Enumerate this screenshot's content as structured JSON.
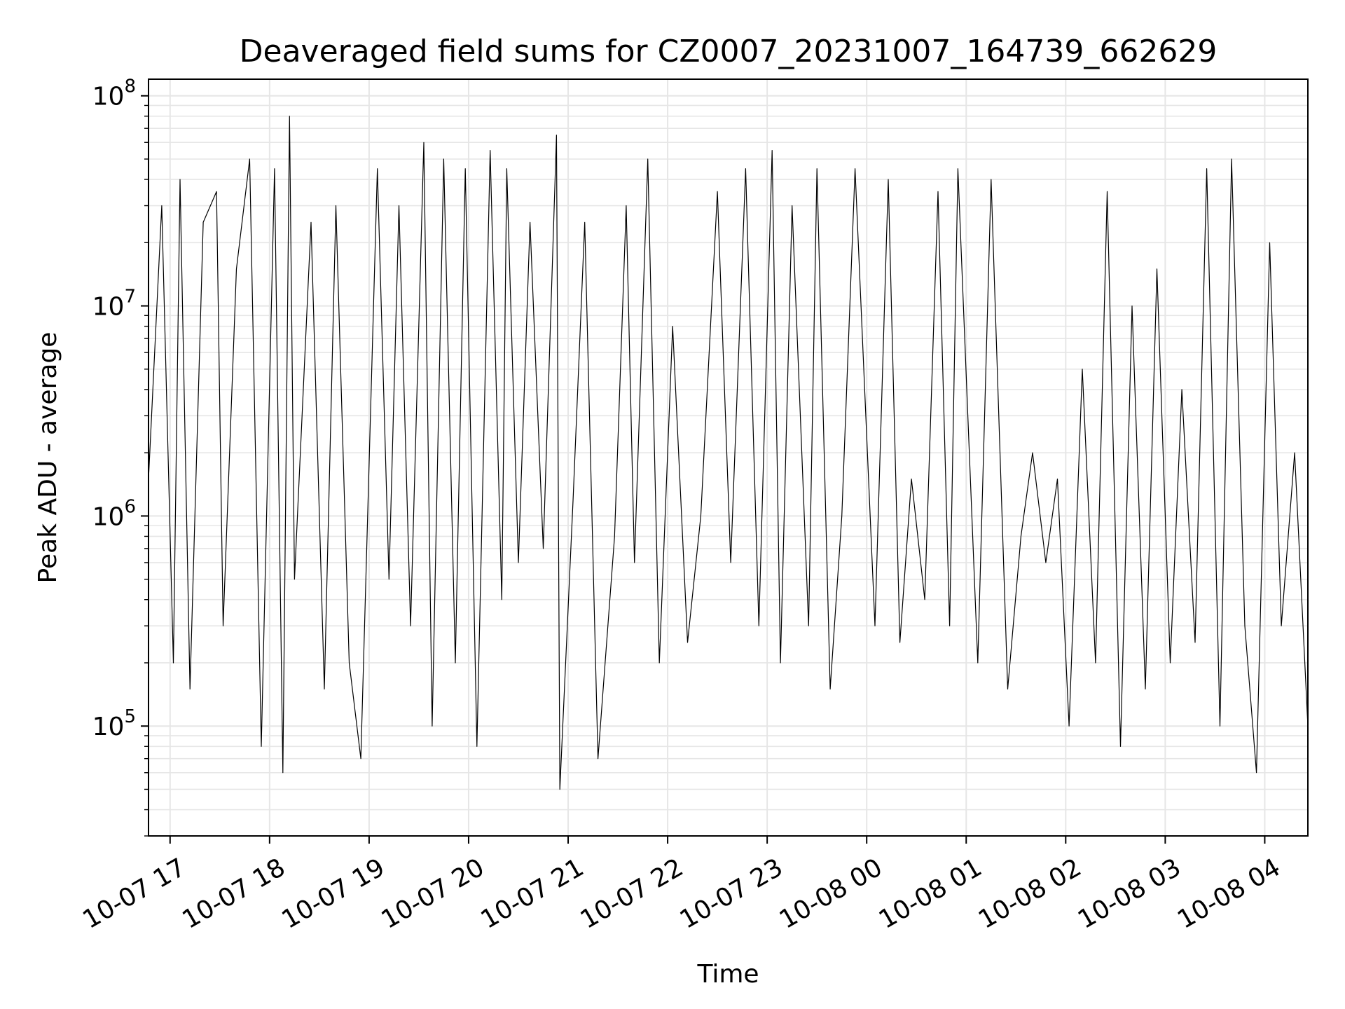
{
  "chart_data": {
    "type": "line",
    "title": "Deaveraged field sums for CZ0007_20231007_164739_662629",
    "xlabel": "Time",
    "ylabel": "Peak ADU - average",
    "yscale": "log",
    "ylim": [
      30000,
      120000000
    ],
    "xlim": [
      "2023-10-07 16:47",
      "2023-10-08 04:26"
    ],
    "x_ticks": [
      {
        "value": "2023-10-07 17:00",
        "label": "10-07 17"
      },
      {
        "value": "2023-10-07 18:00",
        "label": "10-07 18"
      },
      {
        "value": "2023-10-07 19:00",
        "label": "10-07 19"
      },
      {
        "value": "2023-10-07 20:00",
        "label": "10-07 20"
      },
      {
        "value": "2023-10-07 21:00",
        "label": "10-07 21"
      },
      {
        "value": "2023-10-07 22:00",
        "label": "10-07 22"
      },
      {
        "value": "2023-10-07 23:00",
        "label": "10-07 23"
      },
      {
        "value": "2023-10-08 00:00",
        "label": "10-08 00"
      },
      {
        "value": "2023-10-08 01:00",
        "label": "10-08 01"
      },
      {
        "value": "2023-10-08 02:00",
        "label": "10-08 02"
      },
      {
        "value": "2023-10-08 03:00",
        "label": "10-08 03"
      },
      {
        "value": "2023-10-08 04:00",
        "label": "10-08 04"
      }
    ],
    "y_ticks": [
      {
        "value": 100000,
        "base": "10",
        "exp": "5"
      },
      {
        "value": 1000000,
        "base": "10",
        "exp": "6"
      },
      {
        "value": 10000000,
        "base": "10",
        "exp": "7"
      },
      {
        "value": 100000000,
        "base": "10",
        "exp": "8"
      }
    ],
    "grid": true,
    "line_color": "#000000",
    "grid_color": "#e6e6e6",
    "series": [
      {
        "x": [
          "2023-10-07 16:47",
          "2023-10-07 16:55",
          "2023-10-07 17:02",
          "2023-10-07 17:06",
          "2023-10-07 17:12",
          "2023-10-07 17:20",
          "2023-10-07 17:28",
          "2023-10-07 17:32",
          "2023-10-07 17:40",
          "2023-10-07 17:48",
          "2023-10-07 17:55",
          "2023-10-07 18:03",
          "2023-10-07 18:08",
          "2023-10-07 18:12",
          "2023-10-07 18:15",
          "2023-10-07 18:25",
          "2023-10-07 18:33",
          "2023-10-07 18:40",
          "2023-10-07 18:48",
          "2023-10-07 18:55",
          "2023-10-07 19:05",
          "2023-10-07 19:12",
          "2023-10-07 19:18",
          "2023-10-07 19:25",
          "2023-10-07 19:33",
          "2023-10-07 19:38",
          "2023-10-07 19:45",
          "2023-10-07 19:52",
          "2023-10-07 19:58",
          "2023-10-07 20:05",
          "2023-10-07 20:13",
          "2023-10-07 20:20",
          "2023-10-07 20:23",
          "2023-10-07 20:30",
          "2023-10-07 20:37",
          "2023-10-07 20:45",
          "2023-10-07 20:53",
          "2023-10-07 20:55",
          "2023-10-07 21:03",
          "2023-10-07 21:10",
          "2023-10-07 21:18",
          "2023-10-07 21:28",
          "2023-10-07 21:35",
          "2023-10-07 21:40",
          "2023-10-07 21:48",
          "2023-10-07 21:55",
          "2023-10-07 22:03",
          "2023-10-07 22:12",
          "2023-10-07 22:20",
          "2023-10-07 22:30",
          "2023-10-07 22:38",
          "2023-10-07 22:47",
          "2023-10-07 22:55",
          "2023-10-07 23:03",
          "2023-10-07 23:08",
          "2023-10-07 23:15",
          "2023-10-07 23:25",
          "2023-10-07 23:30",
          "2023-10-07 23:38",
          "2023-10-07 23:45",
          "2023-10-07 23:53",
          "2023-10-08 00:05",
          "2023-10-08 00:13",
          "2023-10-08 00:20",
          "2023-10-08 00:27",
          "2023-10-08 00:35",
          "2023-10-08 00:43",
          "2023-10-08 00:50",
          "2023-10-08 00:55",
          "2023-10-08 01:07",
          "2023-10-08 01:15",
          "2023-10-08 01:25",
          "2023-10-08 01:33",
          "2023-10-08 01:40",
          "2023-10-08 01:48",
          "2023-10-08 01:55",
          "2023-10-08 02:02",
          "2023-10-08 02:10",
          "2023-10-08 02:18",
          "2023-10-08 02:25",
          "2023-10-08 02:33",
          "2023-10-08 02:40",
          "2023-10-08 02:48",
          "2023-10-08 02:55",
          "2023-10-08 03:03",
          "2023-10-08 03:10",
          "2023-10-08 03:18",
          "2023-10-08 03:25",
          "2023-10-08 03:33",
          "2023-10-08 03:40",
          "2023-10-08 03:48",
          "2023-10-08 03:55",
          "2023-10-08 04:03",
          "2023-10-08 04:10",
          "2023-10-08 04:18",
          "2023-10-08 04:26"
        ],
        "y": [
          1500000,
          30000000,
          200000,
          40000000,
          150000,
          25000000,
          35000000,
          300000,
          15000000,
          50000000,
          80000,
          45000000,
          60000,
          80000000,
          500000,
          25000000,
          150000,
          30000000,
          200000,
          70000,
          45000000,
          500000,
          30000000,
          300000,
          60000000,
          100000,
          50000000,
          200000,
          45000000,
          80000,
          55000000,
          400000,
          45000000,
          600000,
          25000000,
          700000,
          65000000,
          50000,
          1200000,
          25000000,
          70000,
          800000,
          30000000,
          600000,
          50000000,
          200000,
          8000000,
          250000,
          1000000,
          35000000,
          600000,
          45000000,
          300000,
          55000000,
          200000,
          30000000,
          300000,
          45000000,
          150000,
          1000000,
          45000000,
          300000,
          40000000,
          250000,
          1500000,
          400000,
          35000000,
          300000,
          45000000,
          200000,
          40000000,
          150000,
          800000,
          2000000,
          600000,
          1500000,
          100000,
          5000000,
          200000,
          35000000,
          80000,
          10000000,
          150000,
          15000000,
          200000,
          4000000,
          250000,
          45000000,
          100000,
          50000000,
          300000,
          60000,
          20000000,
          300000,
          2000000,
          100000
        ]
      }
    ]
  }
}
